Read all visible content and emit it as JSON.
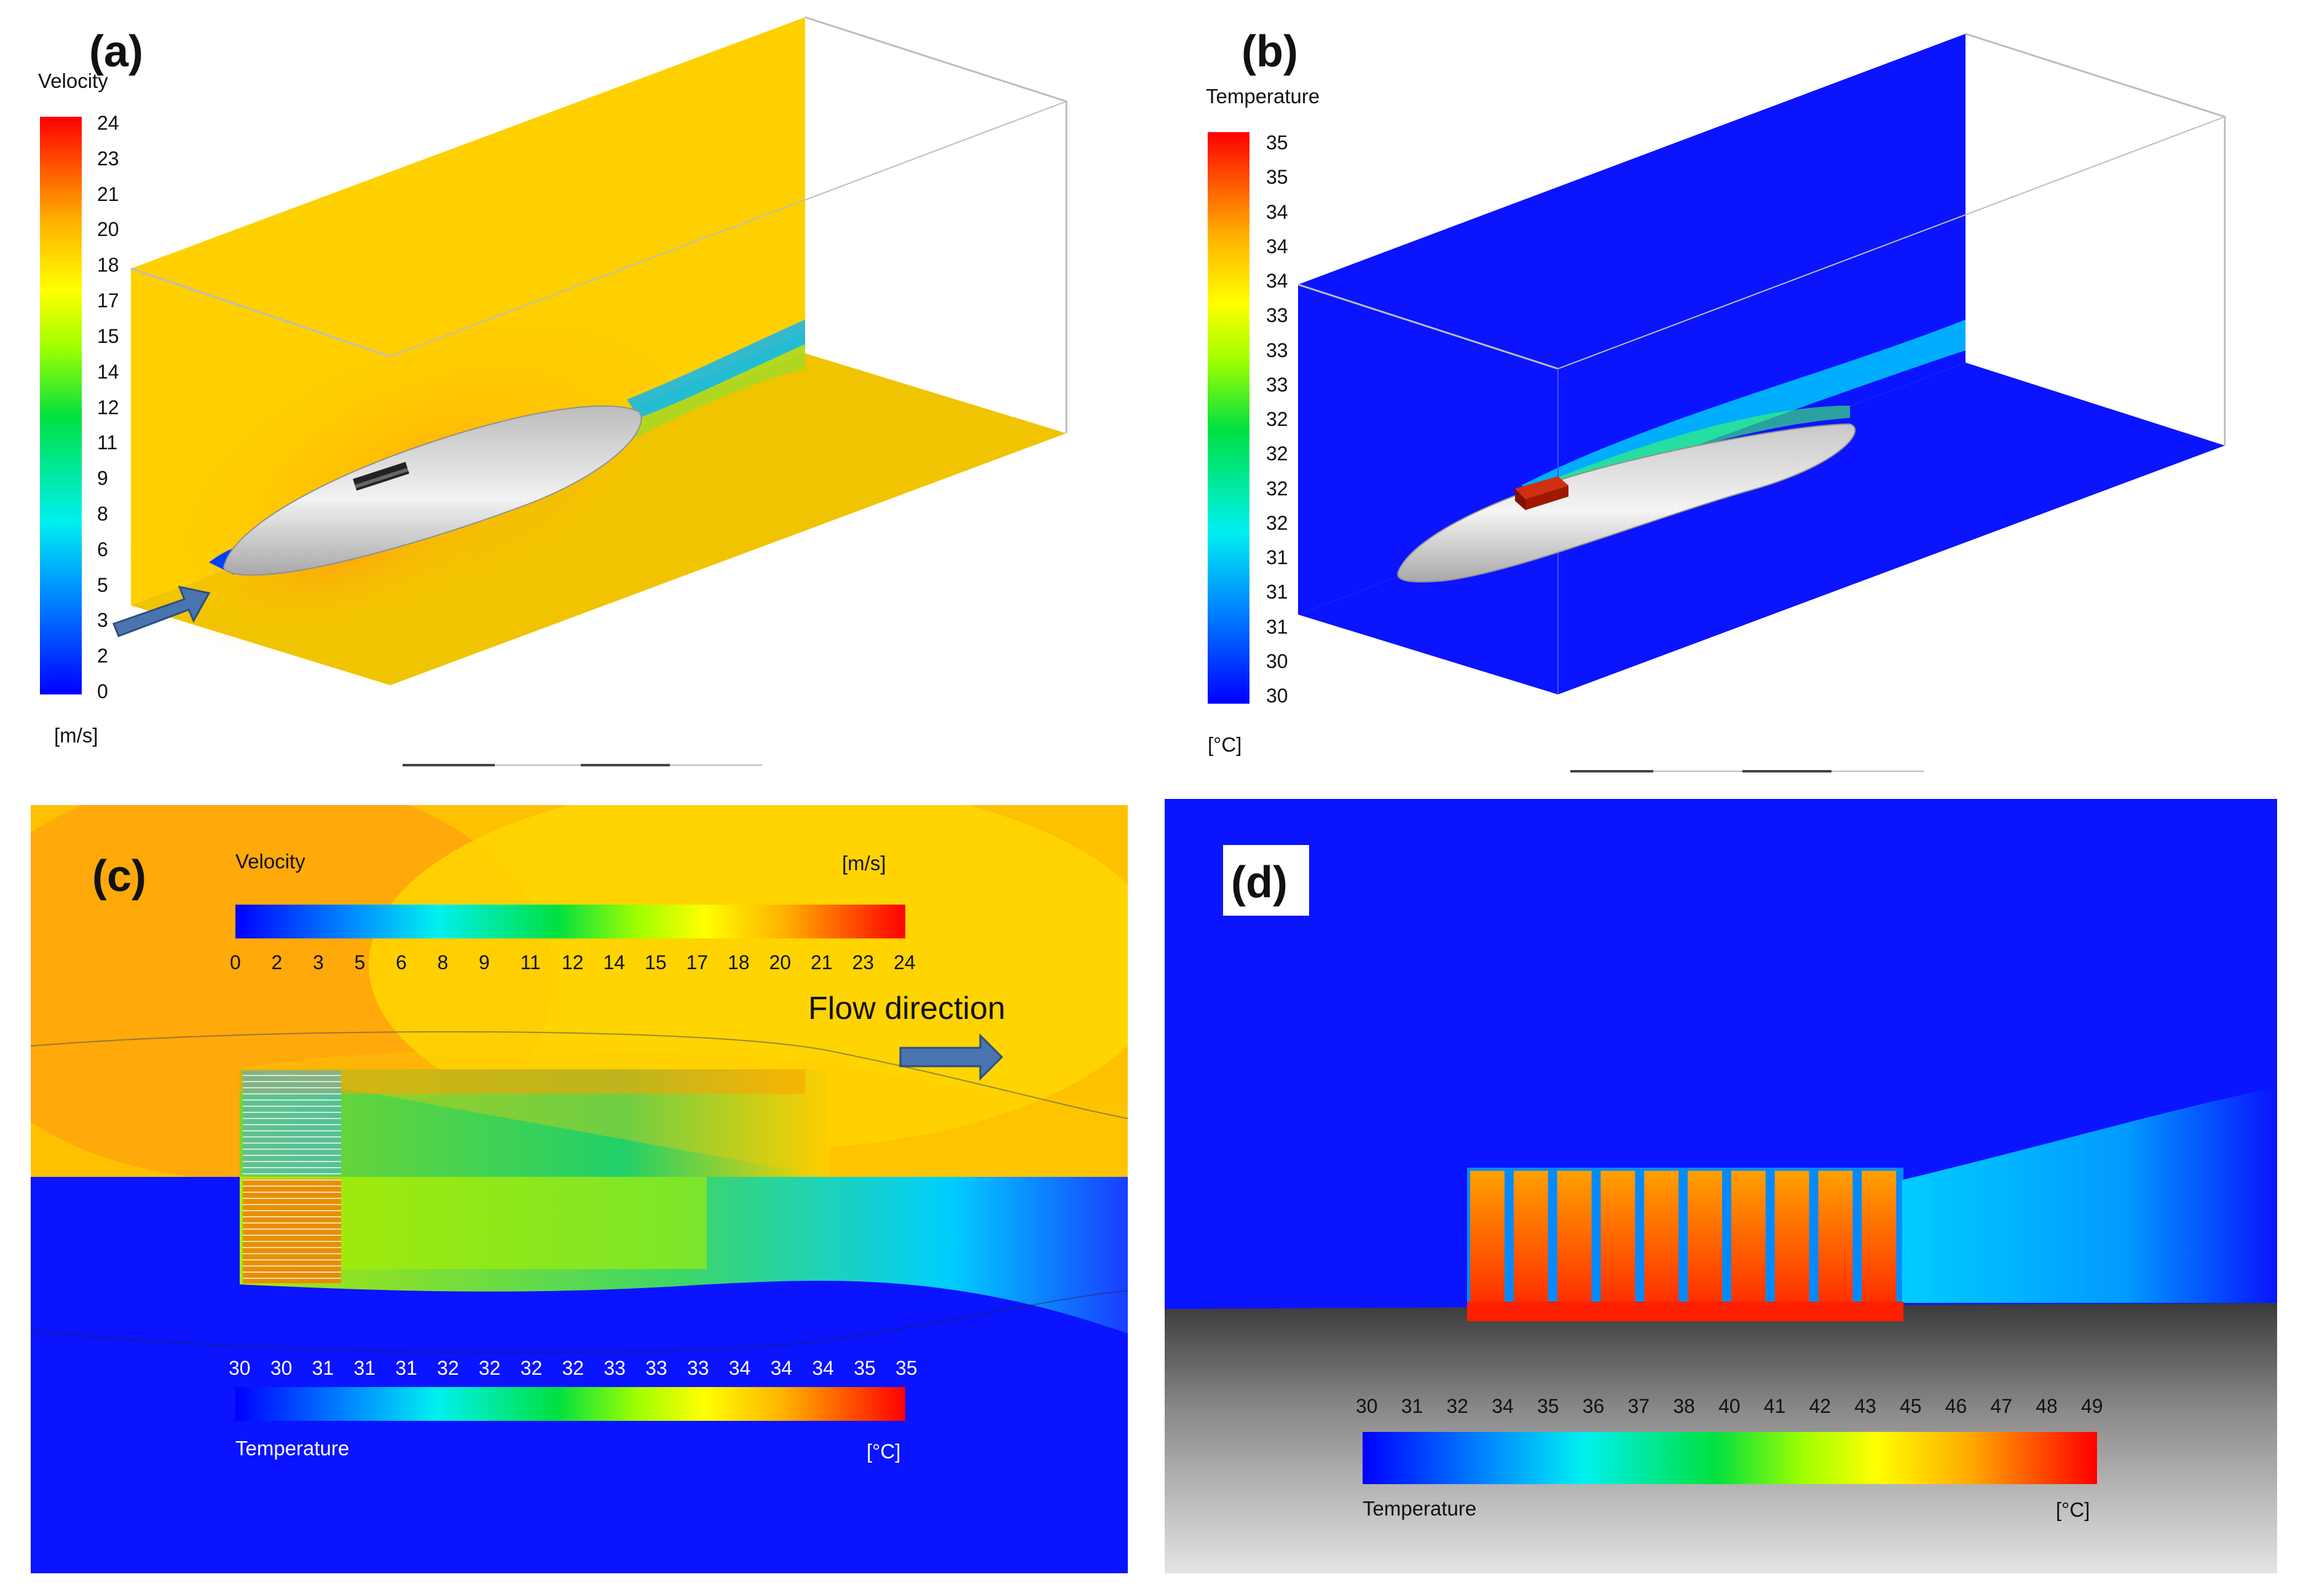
{
  "panels": {
    "a": {
      "label": "(a)",
      "legend_title": "Velocity",
      "unit": "[m/s]",
      "ticks": [
        "24",
        "23",
        "21",
        "20",
        "18",
        "17",
        "15",
        "14",
        "12",
        "11",
        "9",
        "8",
        "6",
        "5",
        "3",
        "2",
        "0"
      ]
    },
    "b": {
      "label": "(b)",
      "legend_title": "Temperature",
      "unit": "[°C]",
      "ticks": [
        "35",
        "35",
        "34",
        "34",
        "34",
        "33",
        "33",
        "33",
        "32",
        "32",
        "32",
        "32",
        "31",
        "31",
        "31",
        "30",
        "30"
      ]
    },
    "c": {
      "label": "(c)",
      "velocity_title": "Velocity",
      "velocity_unit": "[m/s]",
      "velocity_ticks": [
        "0",
        "2",
        "3",
        "5",
        "6",
        "8",
        "9",
        "11",
        "12",
        "14",
        "15",
        "17",
        "18",
        "20",
        "21",
        "23",
        "24"
      ],
      "temperature_title": "Temperature",
      "temperature_unit": "[°C]",
      "temperature_ticks": [
        "30",
        "30",
        "31",
        "31",
        "31",
        "32",
        "32",
        "32",
        "32",
        "33",
        "33",
        "33",
        "34",
        "34",
        "34",
        "35",
        "35"
      ],
      "annotation": "Flow direction"
    },
    "d": {
      "label": "(d)",
      "legend_title": "Temperature",
      "unit": "[°C]",
      "ticks": [
        "30",
        "31",
        "32",
        "34",
        "35",
        "36",
        "37",
        "38",
        "40",
        "41",
        "42",
        "43",
        "45",
        "46",
        "47",
        "48",
        "49"
      ]
    }
  },
  "colors": {
    "low": "#0000ff",
    "high": "#ff0000",
    "ambient_velocity": "#ffd400",
    "ambient_temperature": "#0a14ff",
    "body": "#d0d0d0",
    "arrow": "#4a74b0"
  }
}
